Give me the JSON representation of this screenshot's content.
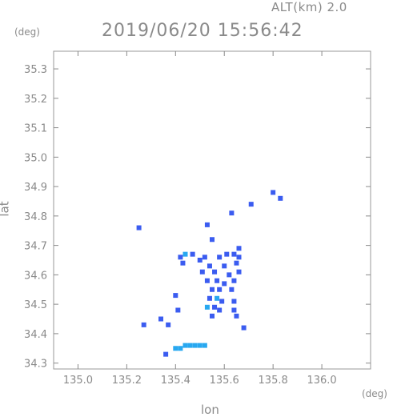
{
  "header": {
    "alt_label": "ALT(km) 2.0",
    "timestamp": "2019/06/20 15:56:42"
  },
  "chart_data": {
    "type": "scatter",
    "title": "2019/06/20 15:56:42",
    "xlabel": "lon",
    "ylabel": "lat",
    "xunit": "(deg)",
    "yunit": "(deg)",
    "xlim": [
      134.9,
      136.2
    ],
    "ylim": [
      34.28,
      35.36
    ],
    "xticks": [
      135.0,
      135.2,
      135.4,
      135.6,
      135.8,
      136.0
    ],
    "xtick_labels": [
      "135.0",
      "135.2",
      "135.4",
      "135.6",
      "135.8",
      "136.0"
    ],
    "yticks": [
      34.3,
      34.4,
      34.5,
      34.6,
      34.7,
      34.8,
      34.9,
      35.0,
      35.1,
      35.2,
      35.3
    ],
    "ytick_labels": [
      "34.3",
      "34.4",
      "34.5",
      "34.6",
      "34.7",
      "34.8",
      "34.9",
      "35.0",
      "35.1",
      "35.2",
      "35.3"
    ],
    "grid": false,
    "colors": {
      "echo_blue": "#3b5cf0",
      "echo_cyan": "#28a8f0",
      "axis": "#8a8a8a"
    },
    "points": [
      {
        "x": 135.25,
        "y": 34.76,
        "c": "#3b5cf0"
      },
      {
        "x": 135.8,
        "y": 34.88,
        "c": "#3b5cf0"
      },
      {
        "x": 135.83,
        "y": 34.86,
        "c": "#3b5cf0"
      },
      {
        "x": 135.71,
        "y": 34.84,
        "c": "#3b5cf0"
      },
      {
        "x": 135.63,
        "y": 34.81,
        "c": "#3b5cf0"
      },
      {
        "x": 135.53,
        "y": 34.77,
        "c": "#3b5cf0"
      },
      {
        "x": 135.55,
        "y": 34.72,
        "c": "#3b5cf0"
      },
      {
        "x": 135.66,
        "y": 34.69,
        "c": "#3b5cf0"
      },
      {
        "x": 135.42,
        "y": 34.66,
        "c": "#3b5cf0"
      },
      {
        "x": 135.44,
        "y": 34.67,
        "c": "#28a8f0"
      },
      {
        "x": 135.47,
        "y": 34.67,
        "c": "#3b5cf0"
      },
      {
        "x": 135.5,
        "y": 34.65,
        "c": "#3b5cf0"
      },
      {
        "x": 135.52,
        "y": 34.66,
        "c": "#3b5cf0"
      },
      {
        "x": 135.58,
        "y": 34.66,
        "c": "#3b5cf0"
      },
      {
        "x": 135.61,
        "y": 34.67,
        "c": "#3b5cf0"
      },
      {
        "x": 135.64,
        "y": 34.67,
        "c": "#3b5cf0"
      },
      {
        "x": 135.66,
        "y": 34.66,
        "c": "#3b5cf0"
      },
      {
        "x": 135.43,
        "y": 34.64,
        "c": "#3b5cf0"
      },
      {
        "x": 135.54,
        "y": 34.63,
        "c": "#3b5cf0"
      },
      {
        "x": 135.6,
        "y": 34.63,
        "c": "#3b5cf0"
      },
      {
        "x": 135.65,
        "y": 34.64,
        "c": "#3b5cf0"
      },
      {
        "x": 135.51,
        "y": 34.61,
        "c": "#3b5cf0"
      },
      {
        "x": 135.56,
        "y": 34.61,
        "c": "#3b5cf0"
      },
      {
        "x": 135.62,
        "y": 34.6,
        "c": "#3b5cf0"
      },
      {
        "x": 135.66,
        "y": 34.61,
        "c": "#3b5cf0"
      },
      {
        "x": 135.53,
        "y": 34.58,
        "c": "#3b5cf0"
      },
      {
        "x": 135.57,
        "y": 34.58,
        "c": "#3b5cf0"
      },
      {
        "x": 135.6,
        "y": 34.57,
        "c": "#3b5cf0"
      },
      {
        "x": 135.64,
        "y": 34.58,
        "c": "#3b5cf0"
      },
      {
        "x": 135.55,
        "y": 34.55,
        "c": "#3b5cf0"
      },
      {
        "x": 135.58,
        "y": 34.55,
        "c": "#3b5cf0"
      },
      {
        "x": 135.63,
        "y": 34.55,
        "c": "#3b5cf0"
      },
      {
        "x": 135.4,
        "y": 34.53,
        "c": "#3b5cf0"
      },
      {
        "x": 135.54,
        "y": 34.52,
        "c": "#3b5cf0"
      },
      {
        "x": 135.57,
        "y": 34.52,
        "c": "#28a8f0"
      },
      {
        "x": 135.59,
        "y": 34.51,
        "c": "#3b5cf0"
      },
      {
        "x": 135.64,
        "y": 34.51,
        "c": "#3b5cf0"
      },
      {
        "x": 135.53,
        "y": 34.49,
        "c": "#28a8f0"
      },
      {
        "x": 135.56,
        "y": 34.49,
        "c": "#3b5cf0"
      },
      {
        "x": 135.58,
        "y": 34.48,
        "c": "#3b5cf0"
      },
      {
        "x": 135.41,
        "y": 34.48,
        "c": "#3b5cf0"
      },
      {
        "x": 135.64,
        "y": 34.48,
        "c": "#3b5cf0"
      },
      {
        "x": 135.55,
        "y": 34.46,
        "c": "#3b5cf0"
      },
      {
        "x": 135.65,
        "y": 34.46,
        "c": "#3b5cf0"
      },
      {
        "x": 135.34,
        "y": 34.45,
        "c": "#3b5cf0"
      },
      {
        "x": 135.27,
        "y": 34.43,
        "c": "#3b5cf0"
      },
      {
        "x": 135.37,
        "y": 34.43,
        "c": "#3b5cf0"
      },
      {
        "x": 135.68,
        "y": 34.42,
        "c": "#3b5cf0"
      },
      {
        "x": 135.4,
        "y": 34.35,
        "c": "#28a8f0"
      },
      {
        "x": 135.42,
        "y": 34.35,
        "c": "#28a8f0"
      },
      {
        "x": 135.44,
        "y": 34.36,
        "c": "#28a8f0"
      },
      {
        "x": 135.46,
        "y": 34.36,
        "c": "#28a8f0"
      },
      {
        "x": 135.48,
        "y": 34.36,
        "c": "#28a8f0"
      },
      {
        "x": 135.5,
        "y": 34.36,
        "c": "#28a8f0"
      },
      {
        "x": 135.52,
        "y": 34.36,
        "c": "#28a8f0"
      },
      {
        "x": 135.36,
        "y": 34.33,
        "c": "#3b5cf0"
      }
    ]
  }
}
